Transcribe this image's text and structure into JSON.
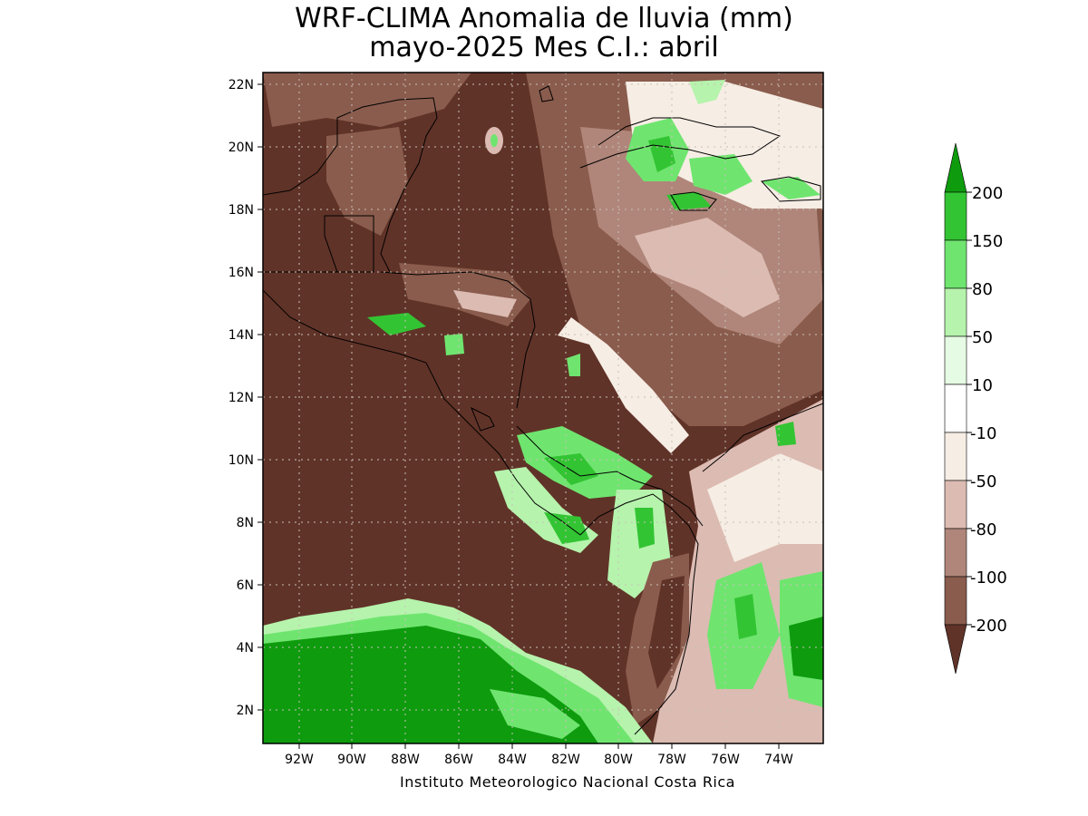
{
  "title_line1": "WRF-CLIMA Anomalia de lluvia (mm)",
  "title_line2": "mayo-2025 Mes C.I.: abril",
  "footer": "Instituto Meteorologico Nacional Costa Rica",
  "lat_labels": [
    "22N",
    "20N",
    "18N",
    "16N",
    "14N",
    "12N",
    "10N",
    "8N",
    "6N",
    "4N",
    "2N"
  ],
  "lon_labels": [
    "92W",
    "90W",
    "88W",
    "86W",
    "84W",
    "82W",
    "80W",
    "78W",
    "76W",
    "74W"
  ],
  "colorbar": {
    "labels": [
      "200",
      "150",
      "80",
      "50",
      "10",
      "-10",
      "-50",
      "-80",
      "-100",
      "-200"
    ],
    "colors": {
      "lt200": "#603328",
      "n200_100": "#8a5c4d",
      "n100_80": "#b0867a",
      "n80_50": "#dcbbb2",
      "n50_10": "#f6ede4",
      "n10_10": "#ffffff",
      "p10_50": "#e6fbe3",
      "p50_80": "#b6f3ad",
      "p80_150": "#6fe56f",
      "p150_200": "#33c433",
      "gt200": "#0e9b0e"
    }
  }
}
